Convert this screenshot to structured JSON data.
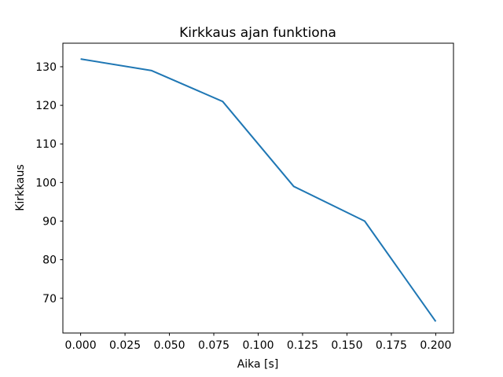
{
  "chart_data": {
    "type": "line",
    "title": "Kirkkaus ajan funktiona",
    "xlabel": "Aika [s]",
    "ylabel": "Kirkkaus",
    "x": [
      0.0,
      0.04,
      0.08,
      0.12,
      0.16,
      0.2
    ],
    "y": [
      132,
      129,
      121,
      99,
      90,
      64
    ],
    "series": [
      {
        "name": "kirkkaus",
        "x": [
          0.0,
          0.04,
          0.08,
          0.12,
          0.16,
          0.2
        ],
        "values": [
          132,
          129,
          121,
          99,
          90,
          64
        ]
      }
    ],
    "xlim": [
      -0.01,
      0.21
    ],
    "ylim": [
      61.0,
      136.1
    ],
    "xticks": [
      {
        "v": 0.0,
        "label": "0.000"
      },
      {
        "v": 0.025,
        "label": "0.025"
      },
      {
        "v": 0.05,
        "label": "0.050"
      },
      {
        "v": 0.075,
        "label": "0.075"
      },
      {
        "v": 0.1,
        "label": "0.100"
      },
      {
        "v": 0.125,
        "label": "0.125"
      },
      {
        "v": 0.15,
        "label": "0.150"
      },
      {
        "v": 0.175,
        "label": "0.175"
      },
      {
        "v": 0.2,
        "label": "0.200"
      }
    ],
    "yticks": [
      {
        "v": 70,
        "label": "70"
      },
      {
        "v": 80,
        "label": "80"
      },
      {
        "v": 90,
        "label": "90"
      },
      {
        "v": 100,
        "label": "100"
      },
      {
        "v": 110,
        "label": "110"
      },
      {
        "v": 120,
        "label": "120"
      },
      {
        "v": 130,
        "label": "130"
      }
    ],
    "grid": false,
    "legend": null,
    "line_color": "#1f77b4",
    "spine_color": "#000000",
    "background": "#ffffff"
  }
}
